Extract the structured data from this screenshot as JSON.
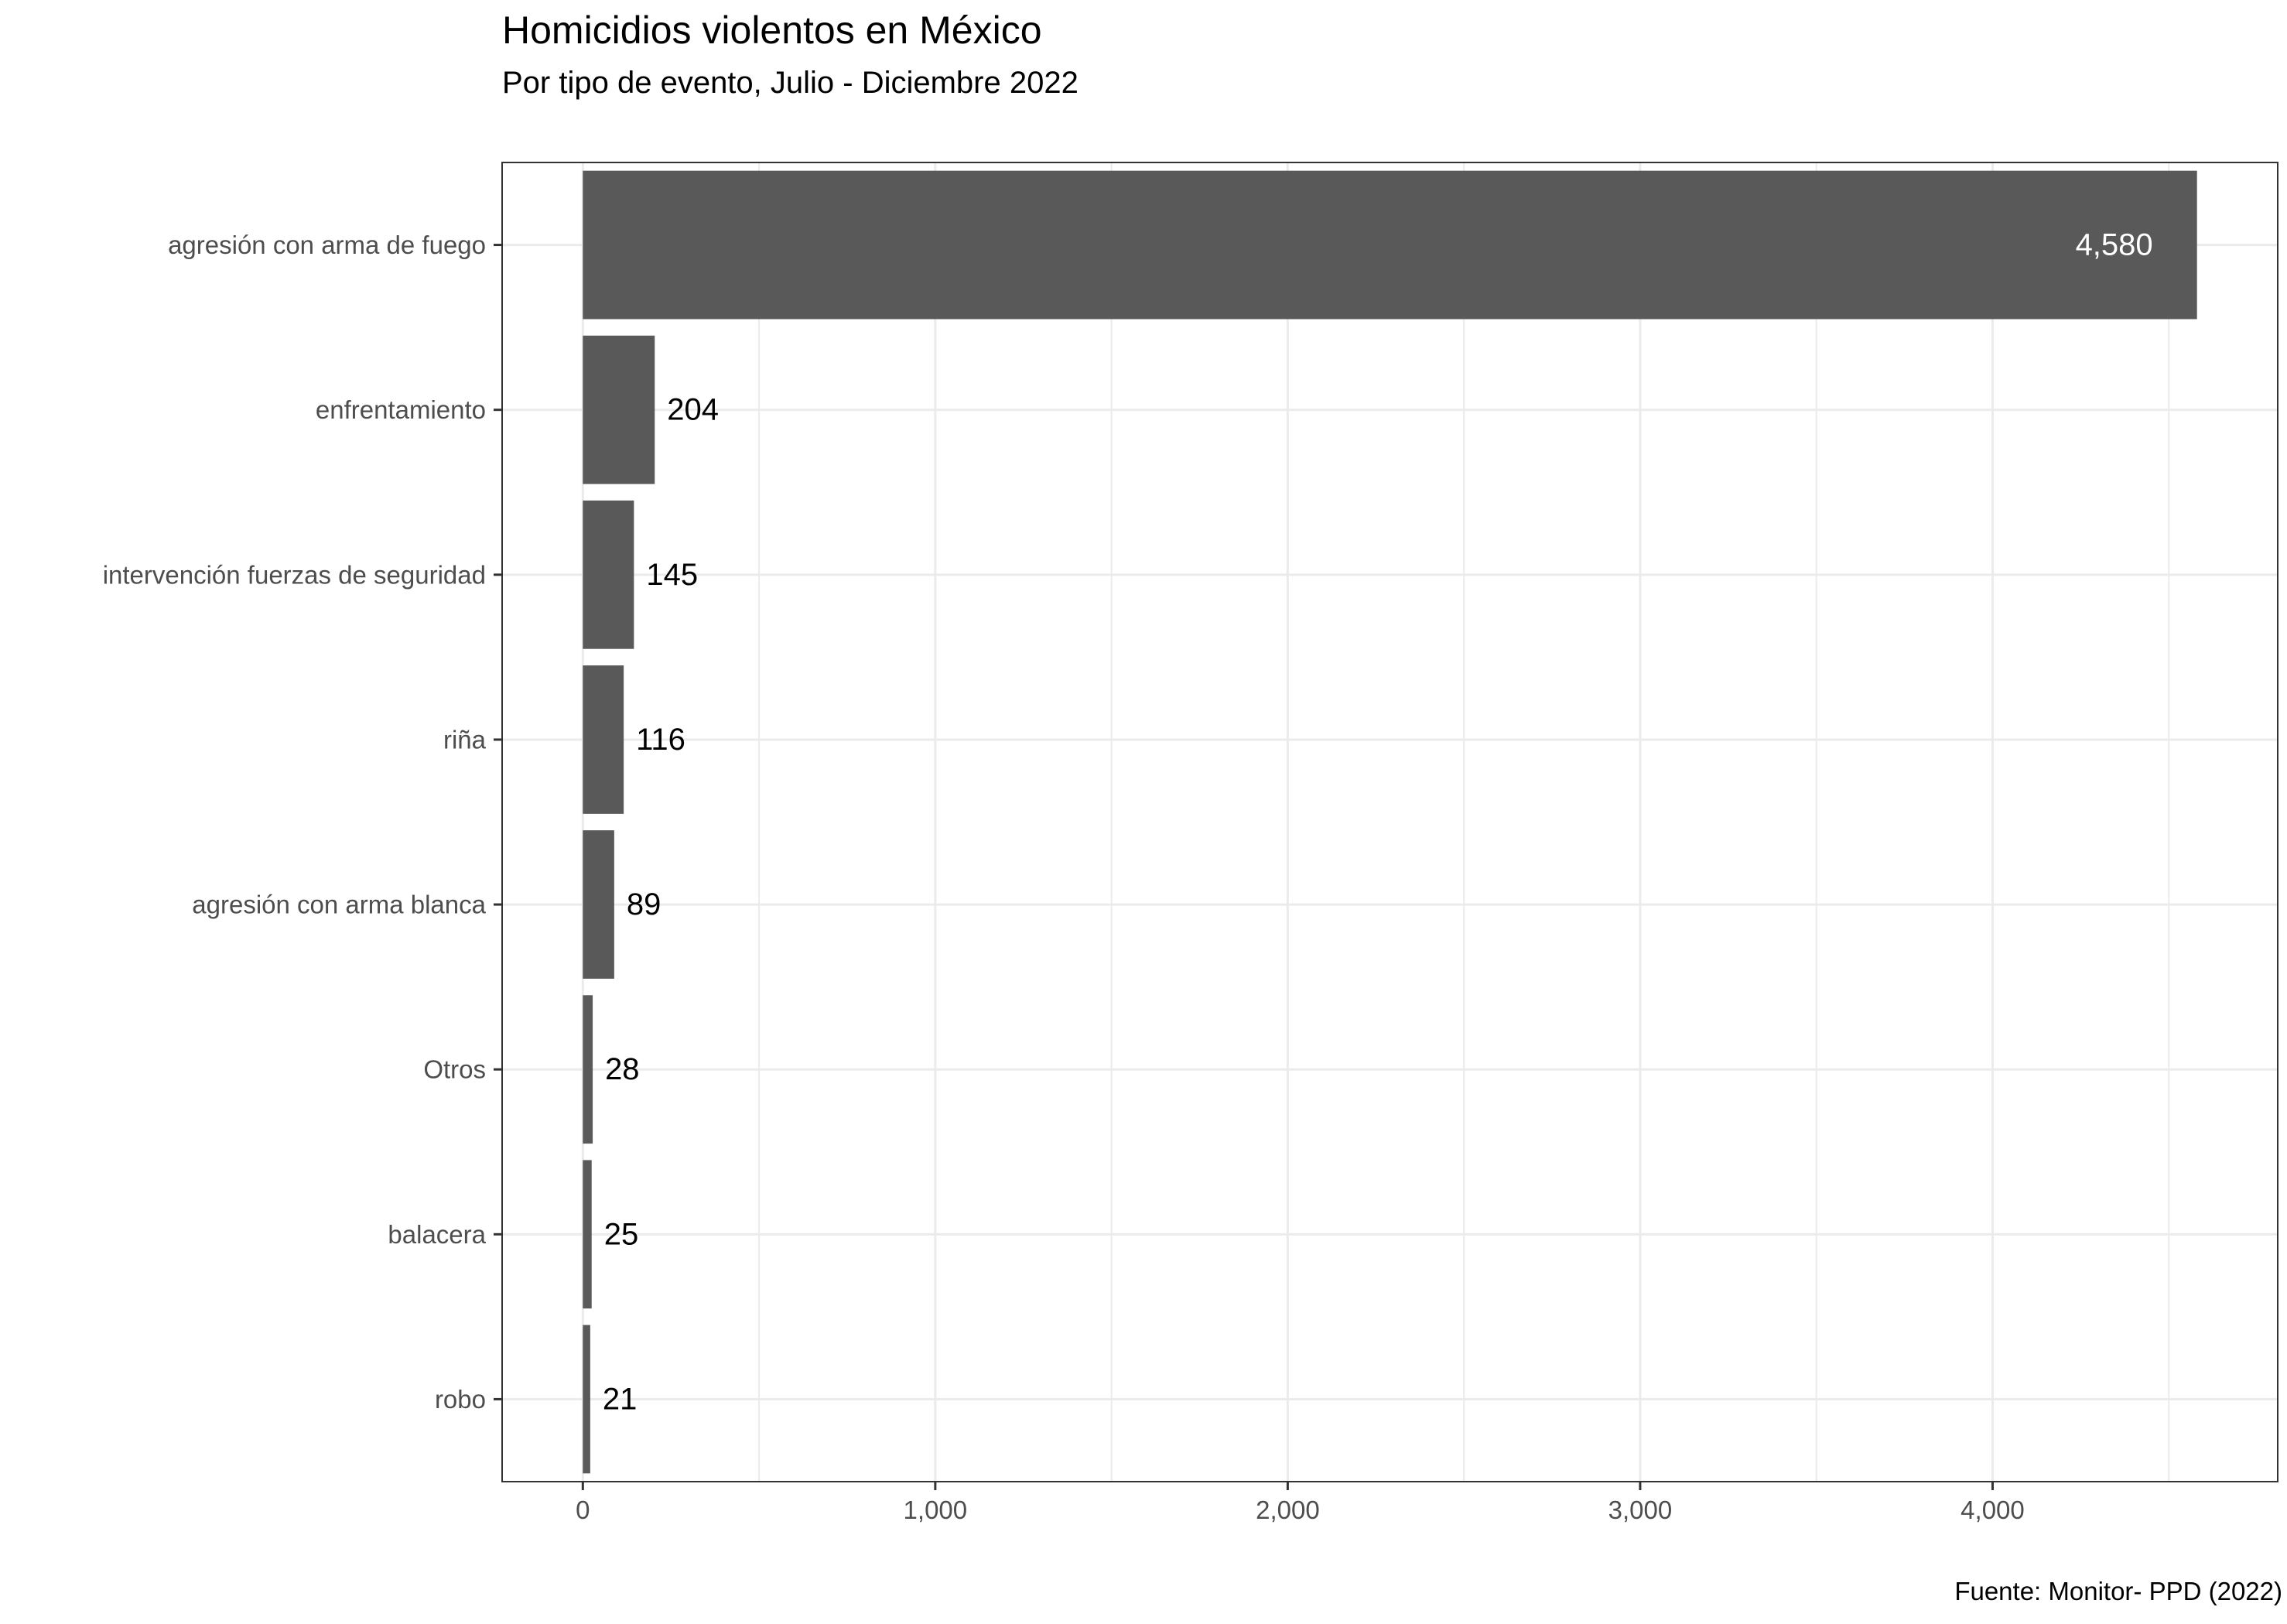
{
  "chart_data": {
    "type": "bar",
    "orientation": "horizontal",
    "title": "Homicidios violentos en México",
    "subtitle": "Por tipo de evento, Julio - Diciembre 2022",
    "caption": "Fuente: Monitor- PPD (2022)",
    "xlabel": "",
    "ylabel": "",
    "categories": [
      "agresión con arma de fuego",
      "enfrentamiento",
      "intervención fuerzas de seguridad",
      "riña",
      "agresión con arma blanca",
      "Otros",
      "balacera",
      "robo"
    ],
    "values": [
      4580,
      204,
      145,
      116,
      89,
      28,
      25,
      21
    ],
    "data_labels": [
      "4,580",
      "204",
      "145",
      "116",
      "89",
      "28",
      "25",
      "21"
    ],
    "x_ticks": [
      0,
      1000,
      2000,
      3000,
      4000
    ],
    "x_tick_labels": [
      "0",
      "1,000",
      "2,000",
      "3,000",
      "4,000"
    ],
    "xlim": [
      -229,
      4809
    ],
    "grid": true,
    "bar_color": "#595959",
    "panel_border_color": "#333333",
    "grid_color": "#ebebeb"
  }
}
